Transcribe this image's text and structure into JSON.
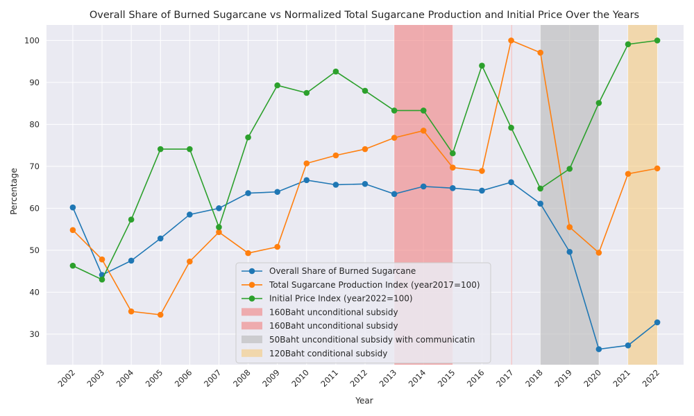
{
  "chart_data": {
    "type": "line",
    "title": "Overall Share of Burned Sugarcane vs Normalized Total Sugarcane Production and Initial Price Over the Years",
    "xlabel": "Year",
    "ylabel": "Percentage",
    "categories": [
      "2002",
      "2003",
      "2004",
      "2005",
      "2006",
      "2007",
      "2008",
      "2009",
      "2010",
      "2011",
      "2012",
      "2013",
      "2014",
      "2015",
      "2016",
      "2017",
      "2018",
      "2019",
      "2020",
      "2021",
      "2022"
    ],
    "ylim": [
      22.7,
      103.7
    ],
    "yticks": [
      30,
      40,
      50,
      60,
      70,
      80,
      90,
      100
    ],
    "grid": true,
    "legend_position": "bottom-center",
    "series": [
      {
        "name": "Overall Share of Burned Sugarcane",
        "color": "#1f77b4",
        "values": [
          60.2,
          44.1,
          47.5,
          52.8,
          58.5,
          60.0,
          63.6,
          63.9,
          66.7,
          65.6,
          65.8,
          63.4,
          65.2,
          64.8,
          64.2,
          66.2,
          61.1,
          49.6,
          26.4,
          27.3,
          32.8
        ]
      },
      {
        "name": "Total Sugarcane Production Index (year2017=100)",
        "color": "#ff7f0e",
        "values": [
          54.8,
          47.8,
          35.4,
          34.6,
          47.3,
          54.3,
          49.3,
          50.8,
          70.7,
          72.6,
          74.1,
          76.8,
          78.5,
          69.7,
          68.9,
          100.0,
          97.1,
          55.5,
          49.4,
          68.2,
          69.5
        ]
      },
      {
        "name": "Initial Price Index (year2022=100)",
        "color": "#2ca02c",
        "values": [
          46.3,
          43.0,
          57.3,
          74.1,
          74.1,
          55.5,
          76.9,
          89.3,
          87.5,
          92.6,
          88.0,
          83.3,
          83.3,
          73.1,
          94.0,
          79.2,
          64.7,
          69.4,
          85.1,
          99.1,
          100.0
        ]
      }
    ],
    "shaded_spans": [
      {
        "label": "160Baht unconditional subsidy",
        "from": "2013",
        "to": "2015",
        "color": "#f08080",
        "opacity": 0.6
      },
      {
        "label": "160Baht unconditional subsidy",
        "from": "2017",
        "to": "2017",
        "color": "#f08080",
        "opacity": 0.6
      },
      {
        "label": "50Baht unconditional subsidy with communicatin",
        "from": "2018",
        "to": "2020",
        "color": "#b8b8b8",
        "opacity": 0.6
      },
      {
        "label": "120Baht conditional subsidy",
        "from": "2021",
        "to": "2022",
        "color": "#f5c97d",
        "opacity": 0.6
      }
    ]
  },
  "style": {
    "plot_background": "#eaeaf2",
    "grid_color": "#ffffff",
    "text_color": "#262626"
  }
}
